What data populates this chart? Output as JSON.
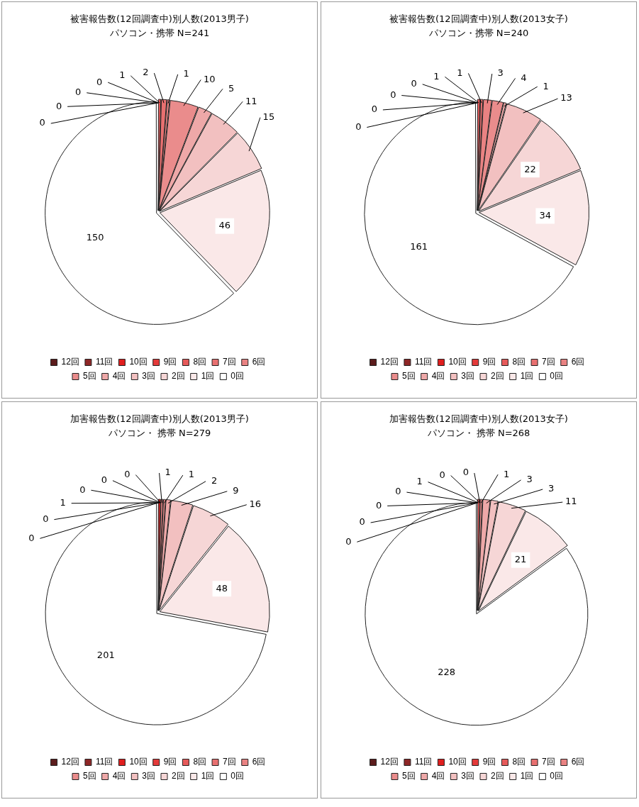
{
  "chart_data": [
    {
      "type": "pie",
      "title": "被害報告数(12回調査中)別人数(2013男子)",
      "subtitle": "パソコン・携帯 N=241",
      "categories": [
        "12回",
        "11回",
        "10回",
        "9回",
        "8回",
        "7回",
        "6回",
        "5回",
        "4回",
        "3回",
        "2回",
        "1回",
        "0回"
      ],
      "values": [
        0,
        0,
        0,
        0,
        1,
        2,
        1,
        10,
        5,
        11,
        15,
        46,
        150
      ],
      "value_labels": [
        "0",
        "0",
        "0",
        "0",
        "1",
        "2",
        "1",
        "10",
        "5",
        "11",
        "15",
        "46",
        "150"
      ],
      "colors": [
        "#5c1c1c",
        "#8e2626",
        "#e01e1e",
        "#e43a3a",
        "#e65a5a",
        "#e87070",
        "#e98282",
        "#ea8c8c",
        "#eea8a8",
        "#f2c0c0",
        "#f6d6d6",
        "#fae8e8",
        "#ffffff"
      ],
      "legend": "bottom"
    },
    {
      "type": "pie",
      "title": "被害報告数(12回調査中)別人数(2013女子)",
      "subtitle": "パソコン・携帯 N=240",
      "categories": [
        "12回",
        "11回",
        "10回",
        "9回",
        "8回",
        "7回",
        "6回",
        "5回",
        "4回",
        "3回",
        "2回",
        "1回",
        "0回"
      ],
      "values": [
        0,
        0,
        0,
        0,
        1,
        1,
        3,
        4,
        1,
        13,
        22,
        34,
        161
      ],
      "value_labels": [
        "0",
        "0",
        "0",
        "0",
        "1",
        "1",
        "3",
        "4",
        "1",
        "13",
        "22",
        "34",
        "161"
      ],
      "colors": [
        "#5c1c1c",
        "#8e2626",
        "#e01e1e",
        "#e43a3a",
        "#e65a5a",
        "#e87070",
        "#e98282",
        "#ea8c8c",
        "#eea8a8",
        "#f2c0c0",
        "#f6d6d6",
        "#fae8e8",
        "#ffffff"
      ],
      "legend": "bottom"
    },
    {
      "type": "pie",
      "title": "加害報告数(12回調査中)別人数(2013男子)",
      "subtitle": "パソコン・ 携帯 N=279",
      "categories": [
        "12回",
        "11回",
        "10回",
        "9回",
        "8回",
        "7回",
        "6回",
        "5回",
        "4回",
        "3回",
        "2回",
        "1回",
        "0回"
      ],
      "values": [
        0,
        0,
        1,
        0,
        0,
        0,
        1,
        1,
        2,
        9,
        16,
        48,
        201
      ],
      "value_labels": [
        "0",
        "0",
        "1",
        "0",
        "0",
        "0",
        "1",
        "1",
        "2",
        "9",
        "16",
        "48",
        "201"
      ],
      "colors": [
        "#5c1c1c",
        "#8e2626",
        "#e01e1e",
        "#e43a3a",
        "#e65a5a",
        "#e87070",
        "#e98282",
        "#ea8c8c",
        "#eea8a8",
        "#f2c0c0",
        "#f6d6d6",
        "#fae8e8",
        "#ffffff"
      ],
      "legend": "bottom"
    },
    {
      "type": "pie",
      "title": "加害報告数(12回調査中)別人数(2013女子)",
      "subtitle": "パソコン・ 携帯 N=268",
      "categories": [
        "12回",
        "11回",
        "10回",
        "9回",
        "8回",
        "7回",
        "6回",
        "5回",
        "4回",
        "3回",
        "2回",
        "1回",
        "0回"
      ],
      "values": [
        0,
        0,
        0,
        0,
        1,
        0,
        0,
        1,
        3,
        3,
        11,
        21,
        228
      ],
      "value_labels": [
        "0",
        "0",
        "0",
        "0",
        "1",
        "0",
        "0",
        "1",
        "3",
        "3",
        "11",
        "21",
        "228"
      ],
      "colors": [
        "#5c1c1c",
        "#8e2626",
        "#e01e1e",
        "#e43a3a",
        "#e65a5a",
        "#e87070",
        "#e98282",
        "#ea8c8c",
        "#eea8a8",
        "#f2c0c0",
        "#f6d6d6",
        "#fae8e8",
        "#ffffff"
      ],
      "legend": "bottom"
    }
  ]
}
